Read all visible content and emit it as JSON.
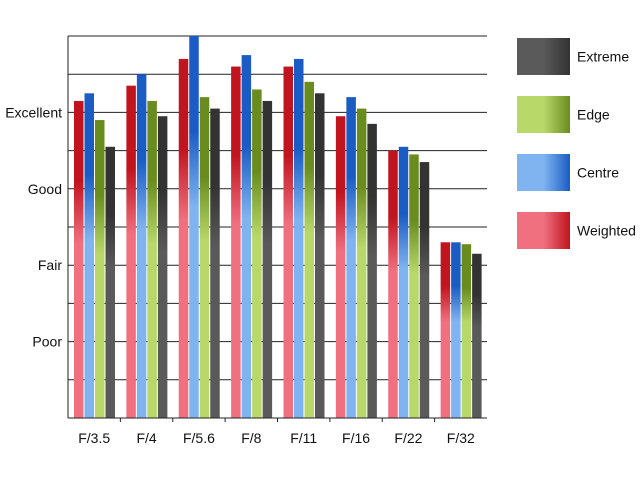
{
  "chart_data": {
    "type": "bar",
    "categories": [
      "F/3.5",
      "F/4",
      "F/5.6",
      "F/8",
      "F/11",
      "F/16",
      "F/22",
      "F/32"
    ],
    "y_tick_labels": [
      {
        "label": "Poor",
        "value": 2
      },
      {
        "label": "Fair",
        "value": 4
      },
      {
        "label": "Good",
        "value": 6
      },
      {
        "label": "Excellent",
        "value": 8
      }
    ],
    "ylim": [
      0,
      10
    ],
    "grid": true,
    "legend_position": "right",
    "series": [
      {
        "name": "Weighted",
        "color": "#c0141e",
        "light": "#f07080",
        "values": [
          8.3,
          8.7,
          9.4,
          9.2,
          9.2,
          7.9,
          7.0,
          4.6
        ]
      },
      {
        "name": "Centre",
        "color": "#1a5cc4",
        "light": "#80b4f0",
        "values": [
          8.5,
          9.0,
          10.0,
          9.5,
          9.4,
          8.4,
          7.1,
          4.6
        ]
      },
      {
        "name": "Edge",
        "color": "#6a8c1e",
        "light": "#b8d86a",
        "values": [
          7.8,
          8.3,
          8.4,
          8.6,
          8.8,
          8.1,
          6.9,
          4.55
        ]
      },
      {
        "name": "Extreme",
        "color": "#333333",
        "light": "#5a5a5a",
        "values": [
          7.1,
          7.9,
          8.1,
          8.3,
          8.5,
          7.7,
          6.7,
          4.3
        ]
      }
    ],
    "legend_order": [
      "Extreme",
      "Edge",
      "Centre",
      "Weighted"
    ]
  }
}
